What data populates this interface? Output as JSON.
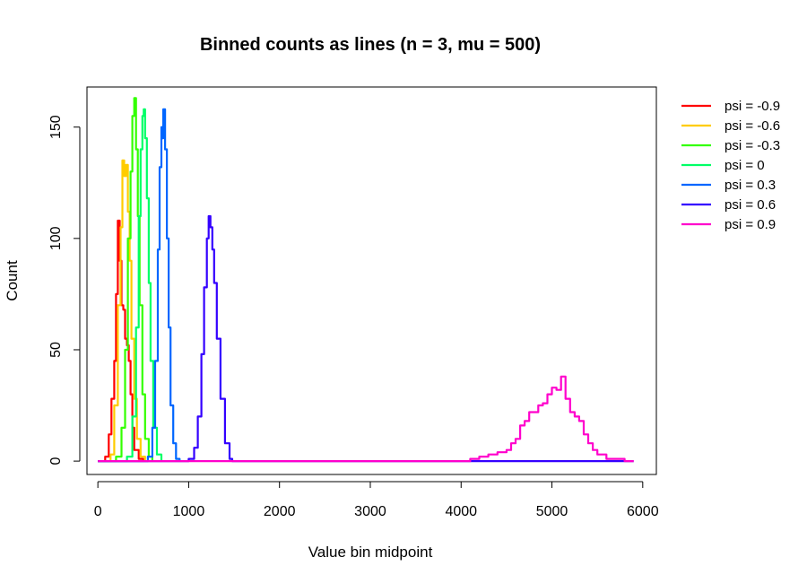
{
  "chart_data": {
    "type": "line",
    "title": "Binned counts as lines (n = 3, mu = 500)",
    "xlabel": "Value bin midpoint",
    "ylabel": "Count",
    "xlim": [
      -120,
      6150
    ],
    "ylim": [
      -6,
      168
    ],
    "x_ticks": [
      0,
      1000,
      2000,
      3000,
      4000,
      5000,
      6000
    ],
    "x_tick_labels": [
      "0",
      "1000",
      "2000",
      "3000",
      "4000",
      "5000",
      "6000"
    ],
    "y_ticks": [
      0,
      50,
      100,
      150
    ],
    "y_tick_labels": [
      "0",
      "50",
      "100",
      "150"
    ],
    "legend_position": "right, outside plot",
    "series": [
      {
        "name": "psi = -0.9",
        "color": "#ff0000",
        "x": [
          0,
          80,
          120,
          150,
          180,
          200,
          220,
          240,
          260,
          280,
          300,
          320,
          340,
          360,
          380,
          400,
          450,
          500
        ],
        "y": [
          0,
          2,
          12,
          28,
          45,
          75,
          108,
          90,
          70,
          68,
          55,
          52,
          45,
          30,
          15,
          5,
          1,
          0
        ]
      },
      {
        "name": "psi = -0.6",
        "color": "#ffcc00",
        "x": [
          0,
          140,
          180,
          220,
          250,
          270,
          290,
          310,
          330,
          350,
          370,
          400,
          430,
          470,
          520
        ],
        "y": [
          0,
          3,
          25,
          70,
          105,
          135,
          128,
          133,
          112,
          90,
          55,
          28,
          10,
          2,
          0
        ]
      },
      {
        "name": "psi = -0.3",
        "color": "#33ff00",
        "x": [
          0,
          200,
          260,
          300,
          330,
          360,
          380,
          400,
          420,
          440,
          460,
          490,
          520,
          560,
          600
        ],
        "y": [
          0,
          2,
          15,
          50,
          100,
          130,
          155,
          163,
          140,
          110,
          70,
          30,
          10,
          2,
          0
        ]
      },
      {
        "name": "psi = 0",
        "color": "#00ff66",
        "x": [
          0,
          320,
          380,
          420,
          450,
          470,
          490,
          505,
          520,
          540,
          560,
          580,
          610,
          650,
          700
        ],
        "y": [
          0,
          2,
          20,
          60,
          110,
          140,
          155,
          158,
          145,
          118,
          80,
          45,
          15,
          3,
          0
        ]
      },
      {
        "name": "psi = 0.3",
        "color": "#0066ff",
        "x": [
          0,
          550,
          600,
          630,
          660,
          680,
          700,
          710,
          720,
          740,
          760,
          780,
          800,
          830,
          860,
          900
        ],
        "y": [
          0,
          2,
          15,
          45,
          95,
          132,
          150,
          145,
          158,
          140,
          100,
          60,
          25,
          8,
          1,
          0
        ]
      },
      {
        "name": "psi = 0.6",
        "color": "#3300ff",
        "x": [
          0,
          1000,
          1060,
          1100,
          1140,
          1170,
          1200,
          1220,
          1240,
          1260,
          1280,
          1310,
          1350,
          1400,
          1450,
          1480,
          5900
        ],
        "y": [
          0,
          1,
          6,
          20,
          48,
          78,
          100,
          110,
          105,
          95,
          80,
          55,
          28,
          8,
          1,
          0,
          0
        ]
      },
      {
        "name": "psi = 0.9",
        "color": "#ff00cc",
        "x": [
          0,
          4000,
          4100,
          4200,
          4300,
          4400,
          4500,
          4550,
          4600,
          4650,
          4700,
          4750,
          4800,
          4850,
          4900,
          4950,
          5000,
          5050,
          5100,
          5150,
          5200,
          5250,
          5300,
          5350,
          5400,
          5450,
          5500,
          5600,
          5700,
          5800,
          5900
        ],
        "y": [
          0,
          0,
          1,
          2,
          3,
          4,
          5,
          8,
          10,
          16,
          18,
          22,
          22,
          25,
          26,
          30,
          33,
          32,
          38,
          28,
          22,
          20,
          18,
          12,
          8,
          5,
          3,
          1,
          1,
          0,
          0
        ]
      }
    ]
  }
}
